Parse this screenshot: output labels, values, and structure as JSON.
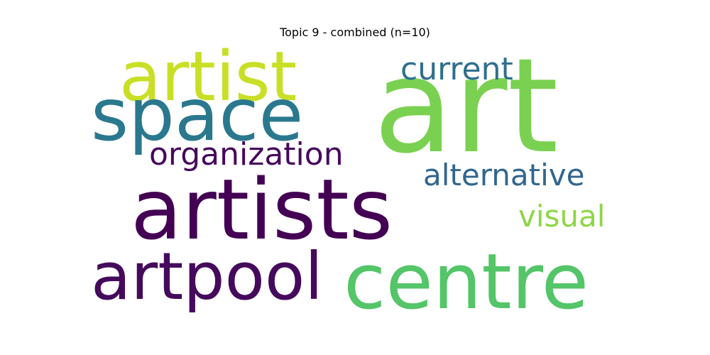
{
  "title": "Topic 9 - combined (n=10)",
  "words": {
    "art": {
      "text": "art",
      "color": "#7ad151"
    },
    "artist": {
      "text": "artist",
      "color": "#c8df25"
    },
    "space": {
      "text": "space",
      "color": "#2a788e"
    },
    "current": {
      "text": "current",
      "color": "#2e6f8e"
    },
    "organization": {
      "text": "organization",
      "color": "#46085c"
    },
    "alternative": {
      "text": "alternative",
      "color": "#31668e"
    },
    "artists": {
      "text": "artists",
      "color": "#440154"
    },
    "visual": {
      "text": "visual",
      "color": "#8ed645"
    },
    "artpool": {
      "text": "artpool",
      "color": "#450a5c"
    },
    "centre": {
      "text": "centre",
      "color": "#54c568"
    }
  }
}
